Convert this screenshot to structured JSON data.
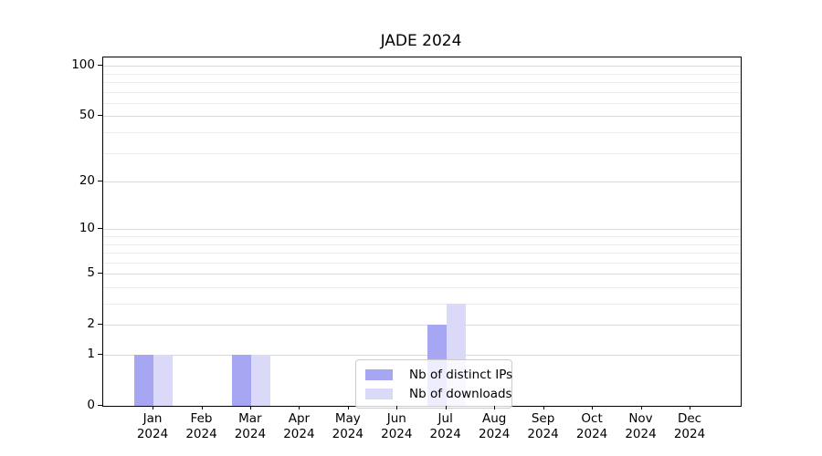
{
  "chart_data": {
    "type": "bar",
    "title": "JADE 2024",
    "categories": [
      "Jan",
      "Feb",
      "Mar",
      "Apr",
      "May",
      "Jun",
      "Jul",
      "Aug",
      "Sep",
      "Oct",
      "Nov",
      "Dec"
    ],
    "x_year": "2024",
    "series": [
      {
        "name": "Nb of distinct IPs",
        "color": "#a6a6f2",
        "values": [
          1,
          0,
          1,
          0,
          0,
          0,
          2,
          0,
          0,
          0,
          0,
          0
        ]
      },
      {
        "name": "Nb of downloads",
        "color": "#dadaf8",
        "values": [
          1,
          0,
          1,
          0,
          0,
          0,
          3,
          0,
          0,
          0,
          0,
          0
        ]
      }
    ],
    "y_axis": {
      "scale": "log1p",
      "major_tick_labels": [
        "100",
        "50",
        "20",
        "10",
        "5",
        "2",
        "1",
        "0"
      ],
      "major_ticks": [
        100,
        50,
        20,
        10,
        5,
        2,
        1,
        0
      ],
      "minor_gridlines": [
        90,
        80,
        70,
        60,
        40,
        30,
        9,
        8,
        7,
        6,
        4,
        3
      ],
      "ylim": [
        0,
        113
      ]
    },
    "grid": true,
    "legend_position": "lower center",
    "colors": {
      "major_grid": "#d9d9d9",
      "minor_grid": "#ededed",
      "axis": "#000000",
      "background": "#ffffff"
    }
  }
}
